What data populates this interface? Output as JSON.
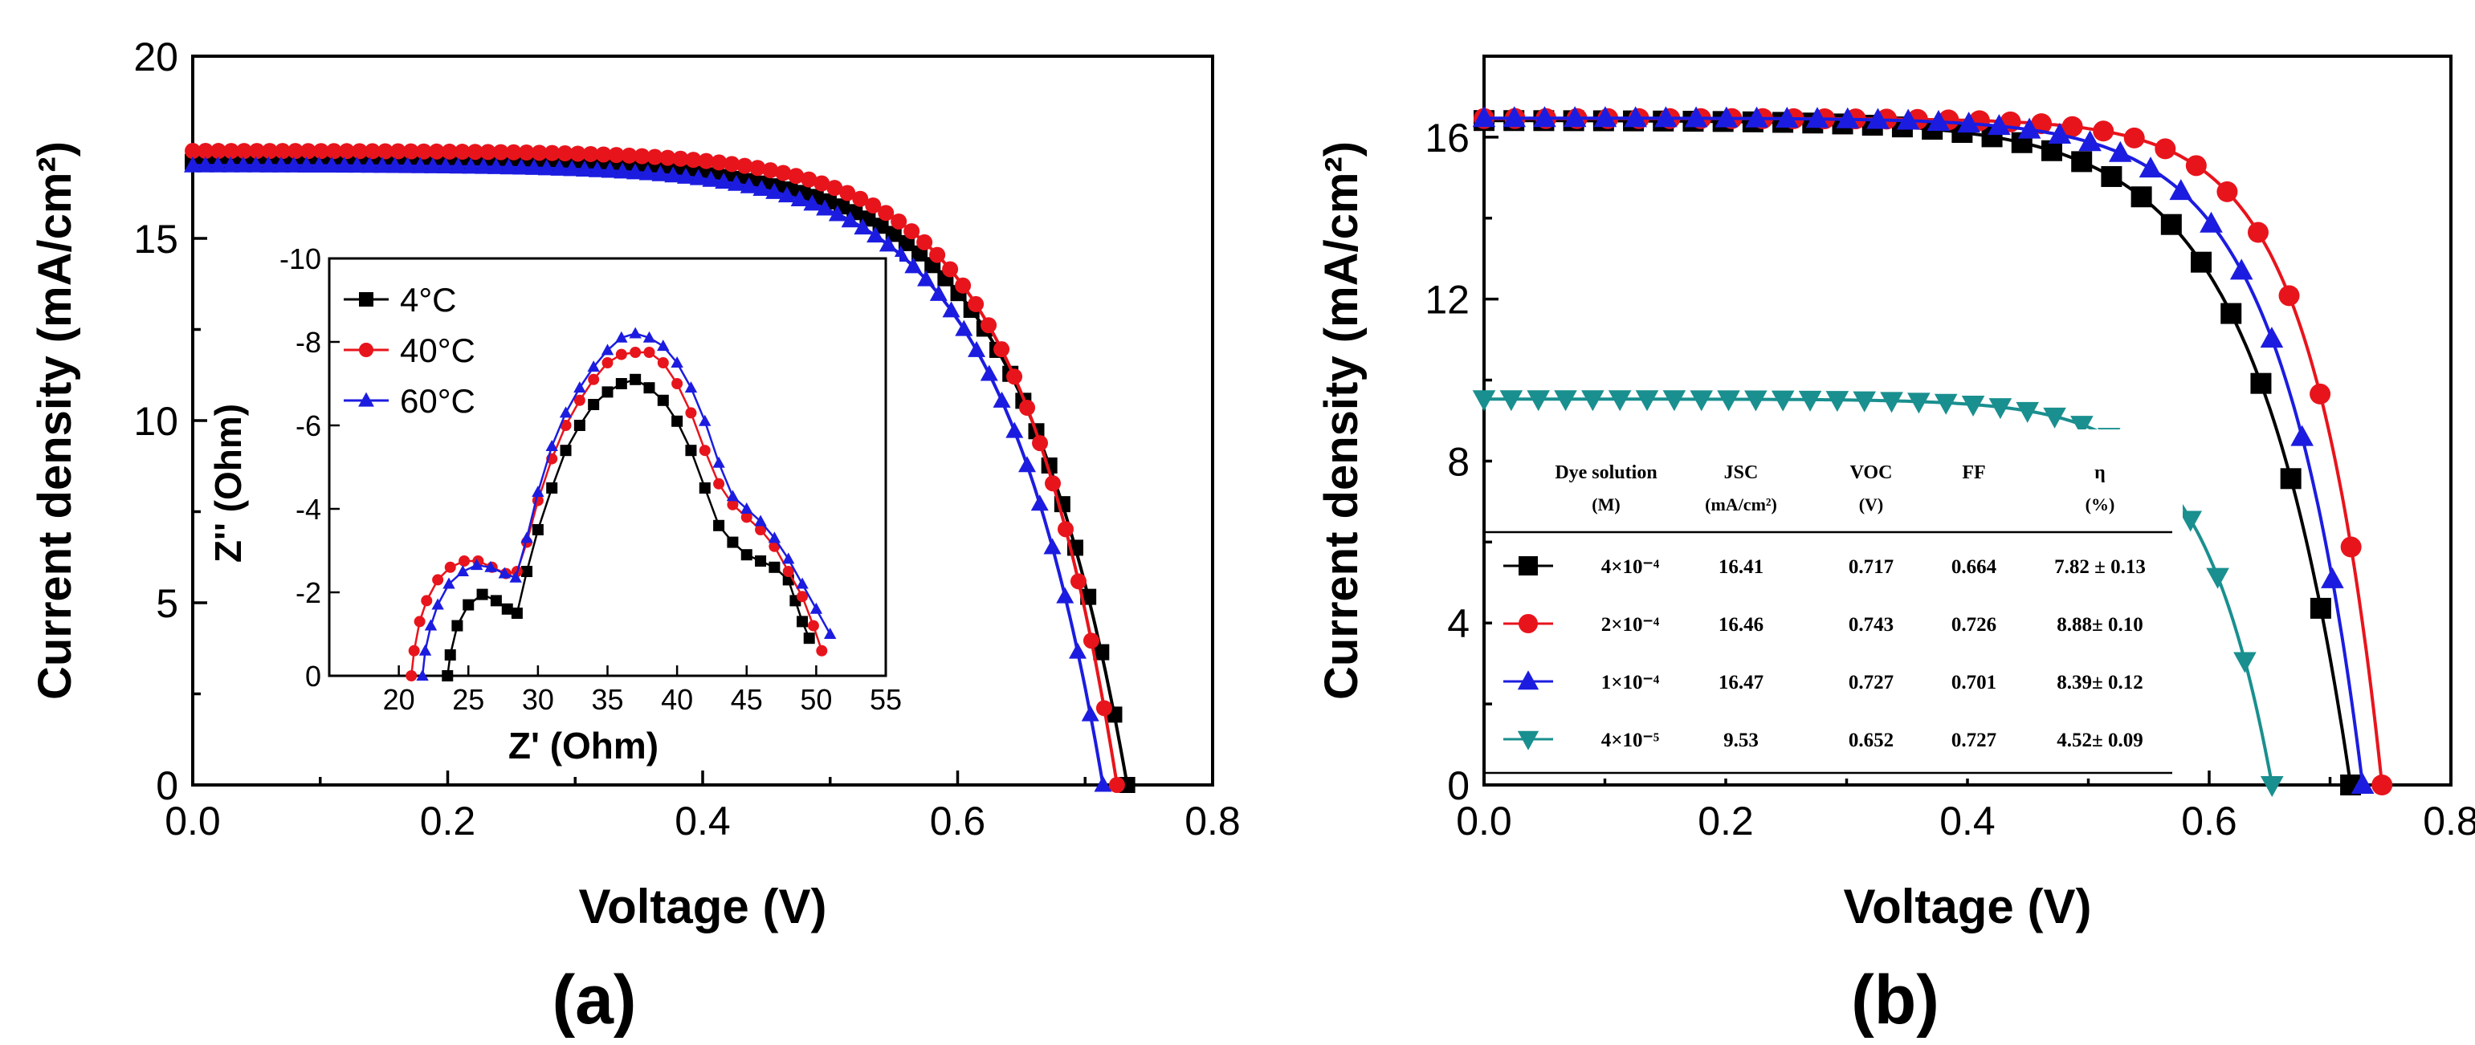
{
  "chart_data": [
    {
      "panel": "(a)",
      "type": "line",
      "xlabel": "Voltage (V)",
      "ylabel": "Current density (mA/cm²)",
      "xlim": [
        0.0,
        0.8
      ],
      "ylim": [
        0,
        20
      ],
      "xticks": [
        "0.0",
        "0.2",
        "0.4",
        "0.6",
        "0.8"
      ],
      "yticks": [
        "0",
        "5",
        "10",
        "15",
        "20"
      ],
      "series": [
        {
          "name": "4°C",
          "color": "#000000",
          "marker": "square",
          "Jsc": 17.1,
          "Voc": 0.733,
          "bend": 0.085
        },
        {
          "name": "40°C",
          "color": "#e8141c",
          "marker": "circle",
          "Jsc": 17.4,
          "Voc": 0.725,
          "bend": 0.078
        },
        {
          "name": "60°C",
          "color": "#1c1ce0",
          "marker": "triangle-up",
          "Jsc": 17.0,
          "Voc": 0.714,
          "bend": 0.082
        }
      ],
      "inset": {
        "type": "line",
        "xlabel": "Z' (Ohm)",
        "ylabel": "Z'' (Ohm)",
        "xlim": [
          15,
          55
        ],
        "ylim": [
          0,
          -10
        ],
        "xticks": [
          "20",
          "25",
          "30",
          "35",
          "40",
          "45",
          "50",
          "55"
        ],
        "yticks": [
          "0",
          "-2",
          "-4",
          "-6",
          "-8",
          "-10"
        ],
        "legend": [
          "4°C",
          "40°C",
          "60°C"
        ],
        "series": [
          {
            "name": "4°C",
            "color": "#000000",
            "marker": "square",
            "x": [
              23.5,
              23.7,
              24.2,
              25.0,
              26.0,
              27.0,
              27.8,
              28.5,
              29.2,
              30.0,
              31.0,
              32.0,
              33.0,
              34.0,
              35.0,
              36.0,
              37.0,
              38.0,
              39.0,
              40.0,
              41.0,
              42.0,
              43.0,
              44.0,
              45.0,
              46.0,
              47.0,
              48.0,
              48.5,
              49.0,
              49.5
            ],
            "y": [
              0.0,
              -0.5,
              -1.2,
              -1.7,
              -1.95,
              -1.8,
              -1.6,
              -1.5,
              -2.5,
              -3.5,
              -4.5,
              -5.4,
              -6.0,
              -6.5,
              -6.8,
              -7.0,
              -7.1,
              -6.9,
              -6.6,
              -6.1,
              -5.4,
              -4.5,
              -3.6,
              -3.2,
              -2.9,
              -2.75,
              -2.6,
              -2.3,
              -1.8,
              -1.3,
              -0.9
            ]
          },
          {
            "name": "40°C",
            "color": "#e8141c",
            "marker": "circle",
            "x": [
              20.9,
              21.1,
              21.5,
              22.0,
              22.8,
              23.7,
              24.7,
              25.7,
              26.7,
              27.7,
              28.5,
              29.2,
              30.0,
              31.0,
              32.0,
              33.0,
              34.0,
              35.0,
              36.0,
              37.0,
              38.0,
              39.0,
              40.0,
              41.0,
              42.0,
              43.0,
              44.0,
              45.0,
              46.0,
              47.0,
              48.0,
              49.0,
              49.8,
              50.4
            ],
            "y": [
              0.0,
              -0.6,
              -1.3,
              -1.8,
              -2.3,
              -2.6,
              -2.75,
              -2.75,
              -2.6,
              -2.45,
              -2.5,
              -3.2,
              -4.2,
              -5.2,
              -6.0,
              -6.6,
              -7.1,
              -7.5,
              -7.7,
              -7.75,
              -7.75,
              -7.5,
              -7.0,
              -6.3,
              -5.4,
              -4.6,
              -4.1,
              -3.8,
              -3.5,
              -3.1,
              -2.5,
              -1.9,
              -1.2,
              -0.6
            ]
          },
          {
            "name": "60°C",
            "color": "#1c1ce0",
            "marker": "triangle-up",
            "x": [
              21.7,
              21.9,
              22.3,
              22.8,
              23.6,
              24.6,
              25.6,
              26.6,
              27.6,
              28.4,
              29.2,
              30.0,
              31.0,
              32.0,
              33.0,
              34.0,
              35.0,
              36.0,
              37.0,
              38.0,
              39.0,
              40.0,
              41.0,
              42.0,
              43.0,
              44.0,
              45.0,
              46.0,
              47.0,
              48.0,
              49.0,
              50.0,
              51.0
            ],
            "y": [
              0.0,
              -0.6,
              -1.2,
              -1.7,
              -2.2,
              -2.5,
              -2.65,
              -2.6,
              -2.45,
              -2.35,
              -3.3,
              -4.4,
              -5.5,
              -6.3,
              -6.9,
              -7.4,
              -7.8,
              -8.1,
              -8.2,
              -8.1,
              -7.9,
              -7.5,
              -6.9,
              -6.1,
              -5.1,
              -4.3,
              -4.0,
              -3.7,
              -3.3,
              -2.8,
              -2.2,
              -1.6,
              -1.0
            ]
          }
        ]
      }
    },
    {
      "panel": "(b)",
      "type": "line",
      "xlabel": "Voltage (V)",
      "ylabel": "Current density (mA/cm²)",
      "xlim": [
        0.0,
        0.8
      ],
      "ylim": [
        0,
        18
      ],
      "xticks": [
        "0.0",
        "0.2",
        "0.4",
        "0.6",
        "0.8"
      ],
      "yticks": [
        "0",
        "4",
        "8",
        "12",
        "16"
      ],
      "series": [
        {
          "name": "4×10⁻⁴",
          "color": "#000000",
          "marker": "square",
          "Jsc": 16.41,
          "Voc": 0.717,
          "bend": 0.08
        },
        {
          "name": "2×10⁻⁴",
          "color": "#e8141c",
          "marker": "circle",
          "Jsc": 16.46,
          "Voc": 0.743,
          "bend": 0.058
        },
        {
          "name": "1×10⁻⁴",
          "color": "#1c1ce0",
          "marker": "triangle-up",
          "Jsc": 16.47,
          "Voc": 0.727,
          "bend": 0.068
        },
        {
          "name": "4×10⁻⁵",
          "color": "#1a8f8f",
          "marker": "triangle-down",
          "Jsc": 9.53,
          "Voc": 0.652,
          "bend": 0.058
        }
      ],
      "table": {
        "headers": [
          [
            "Dye solution",
            "(M)"
          ],
          [
            "JSC",
            "(mA/cm²)"
          ],
          [
            "VOC",
            "(V)"
          ],
          [
            "FF",
            ""
          ],
          [
            "η",
            "(%)"
          ]
        ],
        "rows": [
          [
            "4×10⁻⁴",
            "16.41",
            "0.717",
            "0.664",
            "7.82 ± 0.13"
          ],
          [
            "2×10⁻⁴",
            "16.46",
            "0.743",
            "0.726",
            "8.88± 0.10"
          ],
          [
            "1×10⁻⁴",
            "16.47",
            "0.727",
            "0.701",
            "8.39± 0.12"
          ],
          [
            "4×10⁻⁵",
            "9.53",
            "0.652",
            "0.727",
            "4.52± 0.09"
          ]
        ]
      }
    }
  ]
}
